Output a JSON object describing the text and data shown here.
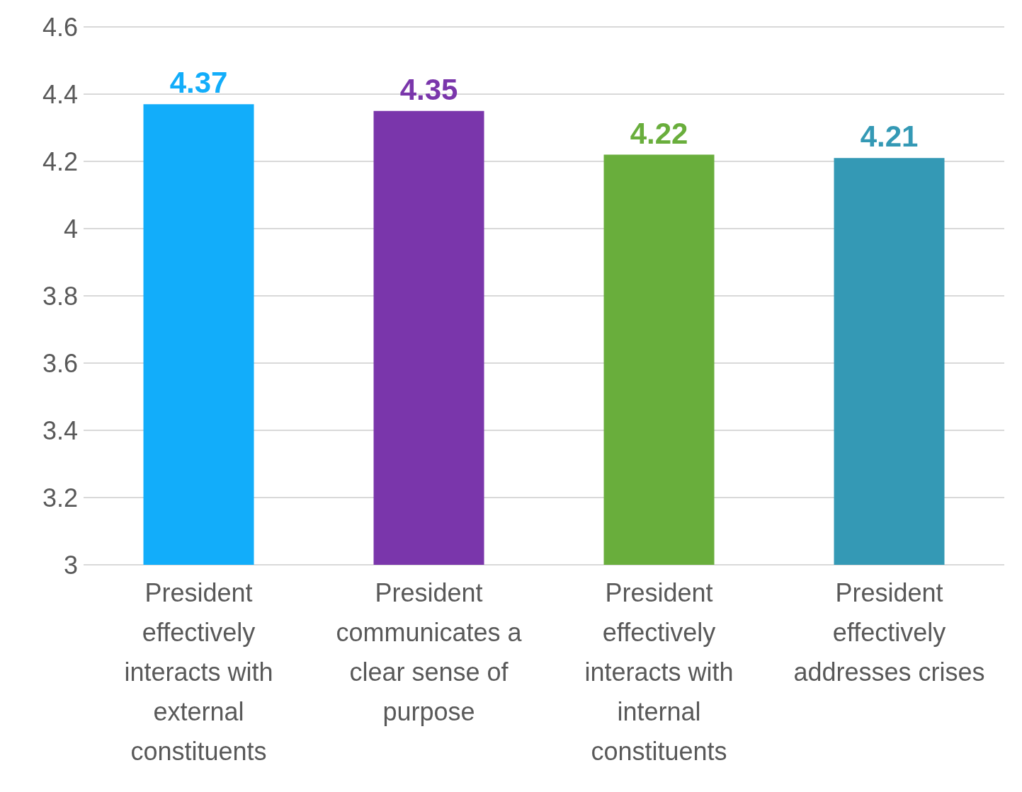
{
  "chart_data": {
    "type": "bar",
    "categories": [
      "President effectively interacts with external constituents",
      "President communicates a clear sense of purpose",
      "President effectively interacts with internal constituents",
      "President effectively addresses crises"
    ],
    "values": [
      4.37,
      4.35,
      4.22,
      4.21
    ],
    "colors": [
      "#12adfa",
      "#7a36ab",
      "#69ae3c",
      "#3499b5"
    ],
    "ylim": [
      3,
      4.6
    ],
    "yticks": [
      3,
      3.2,
      3.4,
      3.6,
      3.8,
      4,
      4.2,
      4.4,
      4.6
    ],
    "grid": "y",
    "data_labels": true,
    "legend": false
  }
}
